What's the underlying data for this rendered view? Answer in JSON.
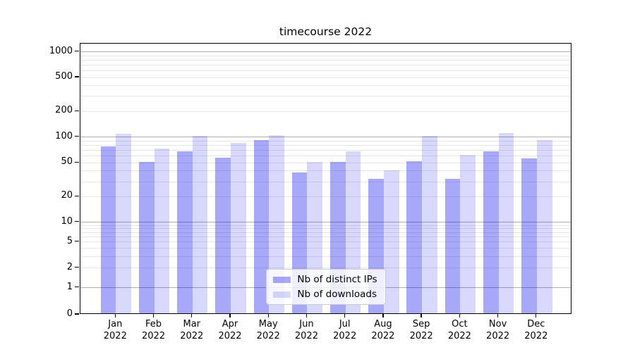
{
  "title": "timecourse 2022",
  "chart_data": {
    "type": "bar",
    "title": "timecourse 2022",
    "categories": [
      "Jan 2022",
      "Feb 2022",
      "Mar 2022",
      "Apr 2022",
      "May 2022",
      "Jun 2022",
      "Jul 2022",
      "Aug 2022",
      "Sep 2022",
      "Oct 2022",
      "Nov 2022",
      "Dec 2022"
    ],
    "x_tick_months": [
      "Jan",
      "Feb",
      "Mar",
      "Apr",
      "May",
      "Jun",
      "Jul",
      "Aug",
      "Sep",
      "Oct",
      "Nov",
      "Dec"
    ],
    "x_tick_year": "2022",
    "series": [
      {
        "name": "Nb of distinct IPs",
        "color": "rgba(0,0,235,0.34)",
        "solid_color": "#a9a9f8",
        "values": [
          75,
          49,
          65,
          55,
          88,
          37,
          49,
          31,
          50,
          31,
          66,
          54
        ]
      },
      {
        "name": "Nb of downloads",
        "color": "rgba(0,0,235,0.153)",
        "solid_color": "#d8d8fb",
        "values": [
          105,
          70,
          100,
          82,
          101,
          49,
          66,
          39,
          100,
          59,
          108,
          89
        ]
      }
    ],
    "yscale": "symlog",
    "yticks": [
      0,
      1,
      2,
      5,
      10,
      20,
      50,
      100,
      200,
      500,
      1000
    ],
    "ytick_labels": [
      "0",
      "1",
      "2",
      "5",
      "10",
      "20",
      "50",
      "100",
      "200",
      "500",
      "1000"
    ],
    "ylim": [
      0,
      1250
    ],
    "xlabel": "",
    "ylabel": "",
    "grid": true,
    "legend_position": "lower center"
  },
  "colors": {
    "background": "#ffffff",
    "spine": "#000000",
    "grid_major": "#b0b0b0",
    "grid_minor": "#e7e7e7",
    "legend_border": "#cccccc",
    "legend_background": "rgba(255,255,255,0.8)",
    "text": "#000000"
  }
}
